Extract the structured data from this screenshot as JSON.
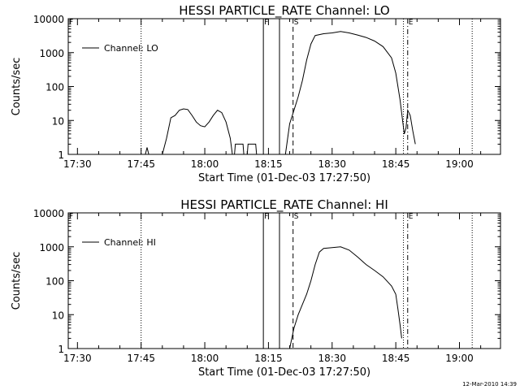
{
  "footer": {
    "timestamp": "12-Mar-2010 14:39"
  },
  "chart_data": [
    {
      "type": "line",
      "title": "HESSI PARTICLE_RATE Channel: LO",
      "xlabel": "Start Time (01-Dec-03 17:27:50)",
      "ylabel": "Counts/sec",
      "yscale": "log",
      "xlim": [
        "17:27:50",
        "19:09:40"
      ],
      "ylim": [
        1,
        10000
      ],
      "xticks": [
        "17:30",
        "17:45",
        "18:00",
        "18:15",
        "18:30",
        "18:45",
        "19:00"
      ],
      "yticks": [
        "1",
        "10",
        "100",
        "1000",
        "10000"
      ],
      "legend": {
        "position": "top-left",
        "entries": [
          "Channel: LO"
        ]
      },
      "grid": false,
      "markers": [
        {
          "label": "F",
          "time": "18:13:48",
          "style": "solid"
        },
        {
          "label": "",
          "time": "18:17:36",
          "style": "solid"
        },
        {
          "label": "S",
          "time": "18:20:48",
          "style": "dashed"
        },
        {
          "label": "E",
          "time": "18:47:48",
          "style": "dashdot"
        }
      ],
      "reference_lines": [
        {
          "time": "17:45:00",
          "style": "dotted"
        },
        {
          "time": "18:46:48",
          "style": "dotted"
        },
        {
          "time": "19:03:00",
          "style": "dotted"
        }
      ],
      "series": [
        {
          "name": "Channel: LO",
          "segments": [
            [
              [
                "17:46:00",
                1.0
              ],
              [
                "17:46:24",
                1.6
              ],
              [
                "17:46:48",
                1.0
              ]
            ],
            [
              [
                "17:50:00",
                1.0
              ],
              [
                "17:51:00",
                3.0
              ],
              [
                "17:52:00",
                12
              ],
              [
                "17:53:00",
                14
              ],
              [
                "17:54:00",
                20
              ],
              [
                "17:55:00",
                22
              ],
              [
                "17:56:00",
                21
              ],
              [
                "17:57:00",
                14
              ],
              [
                "17:58:00",
                9
              ],
              [
                "17:59:00",
                7
              ],
              [
                "18:00:00",
                6.5
              ],
              [
                "18:01:00",
                9
              ],
              [
                "18:02:00",
                14
              ],
              [
                "18:03:00",
                20
              ],
              [
                "18:04:00",
                17
              ],
              [
                "18:05:00",
                9
              ],
              [
                "18:06:00",
                3
              ],
              [
                "18:06:30",
                1.0
              ]
            ],
            [
              [
                "18:07:00",
                1.0
              ],
              [
                "18:07:12",
                2.0
              ],
              [
                "18:09:00",
                2.0
              ],
              [
                "18:09:12",
                1.0
              ],
              [
                "18:10:00",
                1.0
              ],
              [
                "18:10:12",
                2.0
              ],
              [
                "18:12:00",
                2.0
              ],
              [
                "18:12:12",
                1.0
              ]
            ],
            [
              [
                "18:19:00",
                1.0
              ],
              [
                "18:20:00",
                8
              ],
              [
                "18:21:00",
                20
              ],
              [
                "18:22:00",
                50
              ],
              [
                "18:23:00",
                150
              ],
              [
                "18:24:00",
                600
              ],
              [
                "18:25:00",
                1800
              ],
              [
                "18:26:00",
                3200
              ],
              [
                "18:28:00",
                3600
              ],
              [
                "18:30:00",
                3800
              ],
              [
                "18:32:00",
                4200
              ],
              [
                "18:34:00",
                3800
              ],
              [
                "18:36:00",
                3300
              ],
              [
                "18:38:00",
                2800
              ],
              [
                "18:40:00",
                2200
              ],
              [
                "18:42:00",
                1500
              ],
              [
                "18:44:00",
                700
              ],
              [
                "18:45:00",
                250
              ],
              [
                "18:46:00",
                40
              ],
              [
                "18:46:36",
                10
              ],
              [
                "18:47:00",
                4
              ],
              [
                "18:47:24",
                6
              ],
              [
                "18:47:48",
                20
              ],
              [
                "18:48:24",
                14
              ],
              [
                "18:49:00",
                5
              ],
              [
                "18:49:36",
                2
              ]
            ]
          ]
        }
      ]
    },
    {
      "type": "line",
      "title": "HESSI PARTICLE_RATE Channel: HI",
      "xlabel": "Start Time (01-Dec-03 17:27:50)",
      "ylabel": "Counts/sec",
      "yscale": "log",
      "xlim": [
        "17:27:50",
        "19:09:40"
      ],
      "ylim": [
        1,
        10000
      ],
      "xticks": [
        "17:30",
        "17:45",
        "18:00",
        "18:15",
        "18:30",
        "18:45",
        "19:00"
      ],
      "yticks": [
        "1",
        "10",
        "100",
        "1000",
        "10000"
      ],
      "legend": {
        "position": "top-left",
        "entries": [
          "Channel: HI"
        ]
      },
      "grid": false,
      "markers": [
        {
          "label": "F",
          "time": "18:13:48",
          "style": "solid"
        },
        {
          "label": "",
          "time": "18:17:36",
          "style": "solid"
        },
        {
          "label": "S",
          "time": "18:20:48",
          "style": "dashed"
        },
        {
          "label": "E",
          "time": "18:47:48",
          "style": "dashdot"
        }
      ],
      "reference_lines": [
        {
          "time": "17:45:00",
          "style": "dotted"
        },
        {
          "time": "18:46:48",
          "style": "dotted"
        },
        {
          "time": "19:03:00",
          "style": "dotted"
        }
      ],
      "series": [
        {
          "name": "Channel: HI",
          "segments": [
            [
              [
                "18:20:00",
                1.0
              ],
              [
                "18:21:00",
                4
              ],
              [
                "18:22:00",
                10
              ],
              [
                "18:23:00",
                20
              ],
              [
                "18:24:00",
                40
              ],
              [
                "18:25:00",
                100
              ],
              [
                "18:26:00",
                300
              ],
              [
                "18:27:00",
                700
              ],
              [
                "18:28:00",
                900
              ],
              [
                "18:30:00",
                950
              ],
              [
                "18:32:00",
                1000
              ],
              [
                "18:34:00",
                800
              ],
              [
                "18:36:00",
                500
              ],
              [
                "18:38:00",
                300
              ],
              [
                "18:40:00",
                200
              ],
              [
                "18:42:00",
                130
              ],
              [
                "18:44:00",
                70
              ],
              [
                "18:45:00",
                40
              ],
              [
                "18:45:30",
                15
              ],
              [
                "18:46:00",
                5
              ],
              [
                "18:46:24",
                2
              ]
            ]
          ]
        }
      ]
    }
  ]
}
